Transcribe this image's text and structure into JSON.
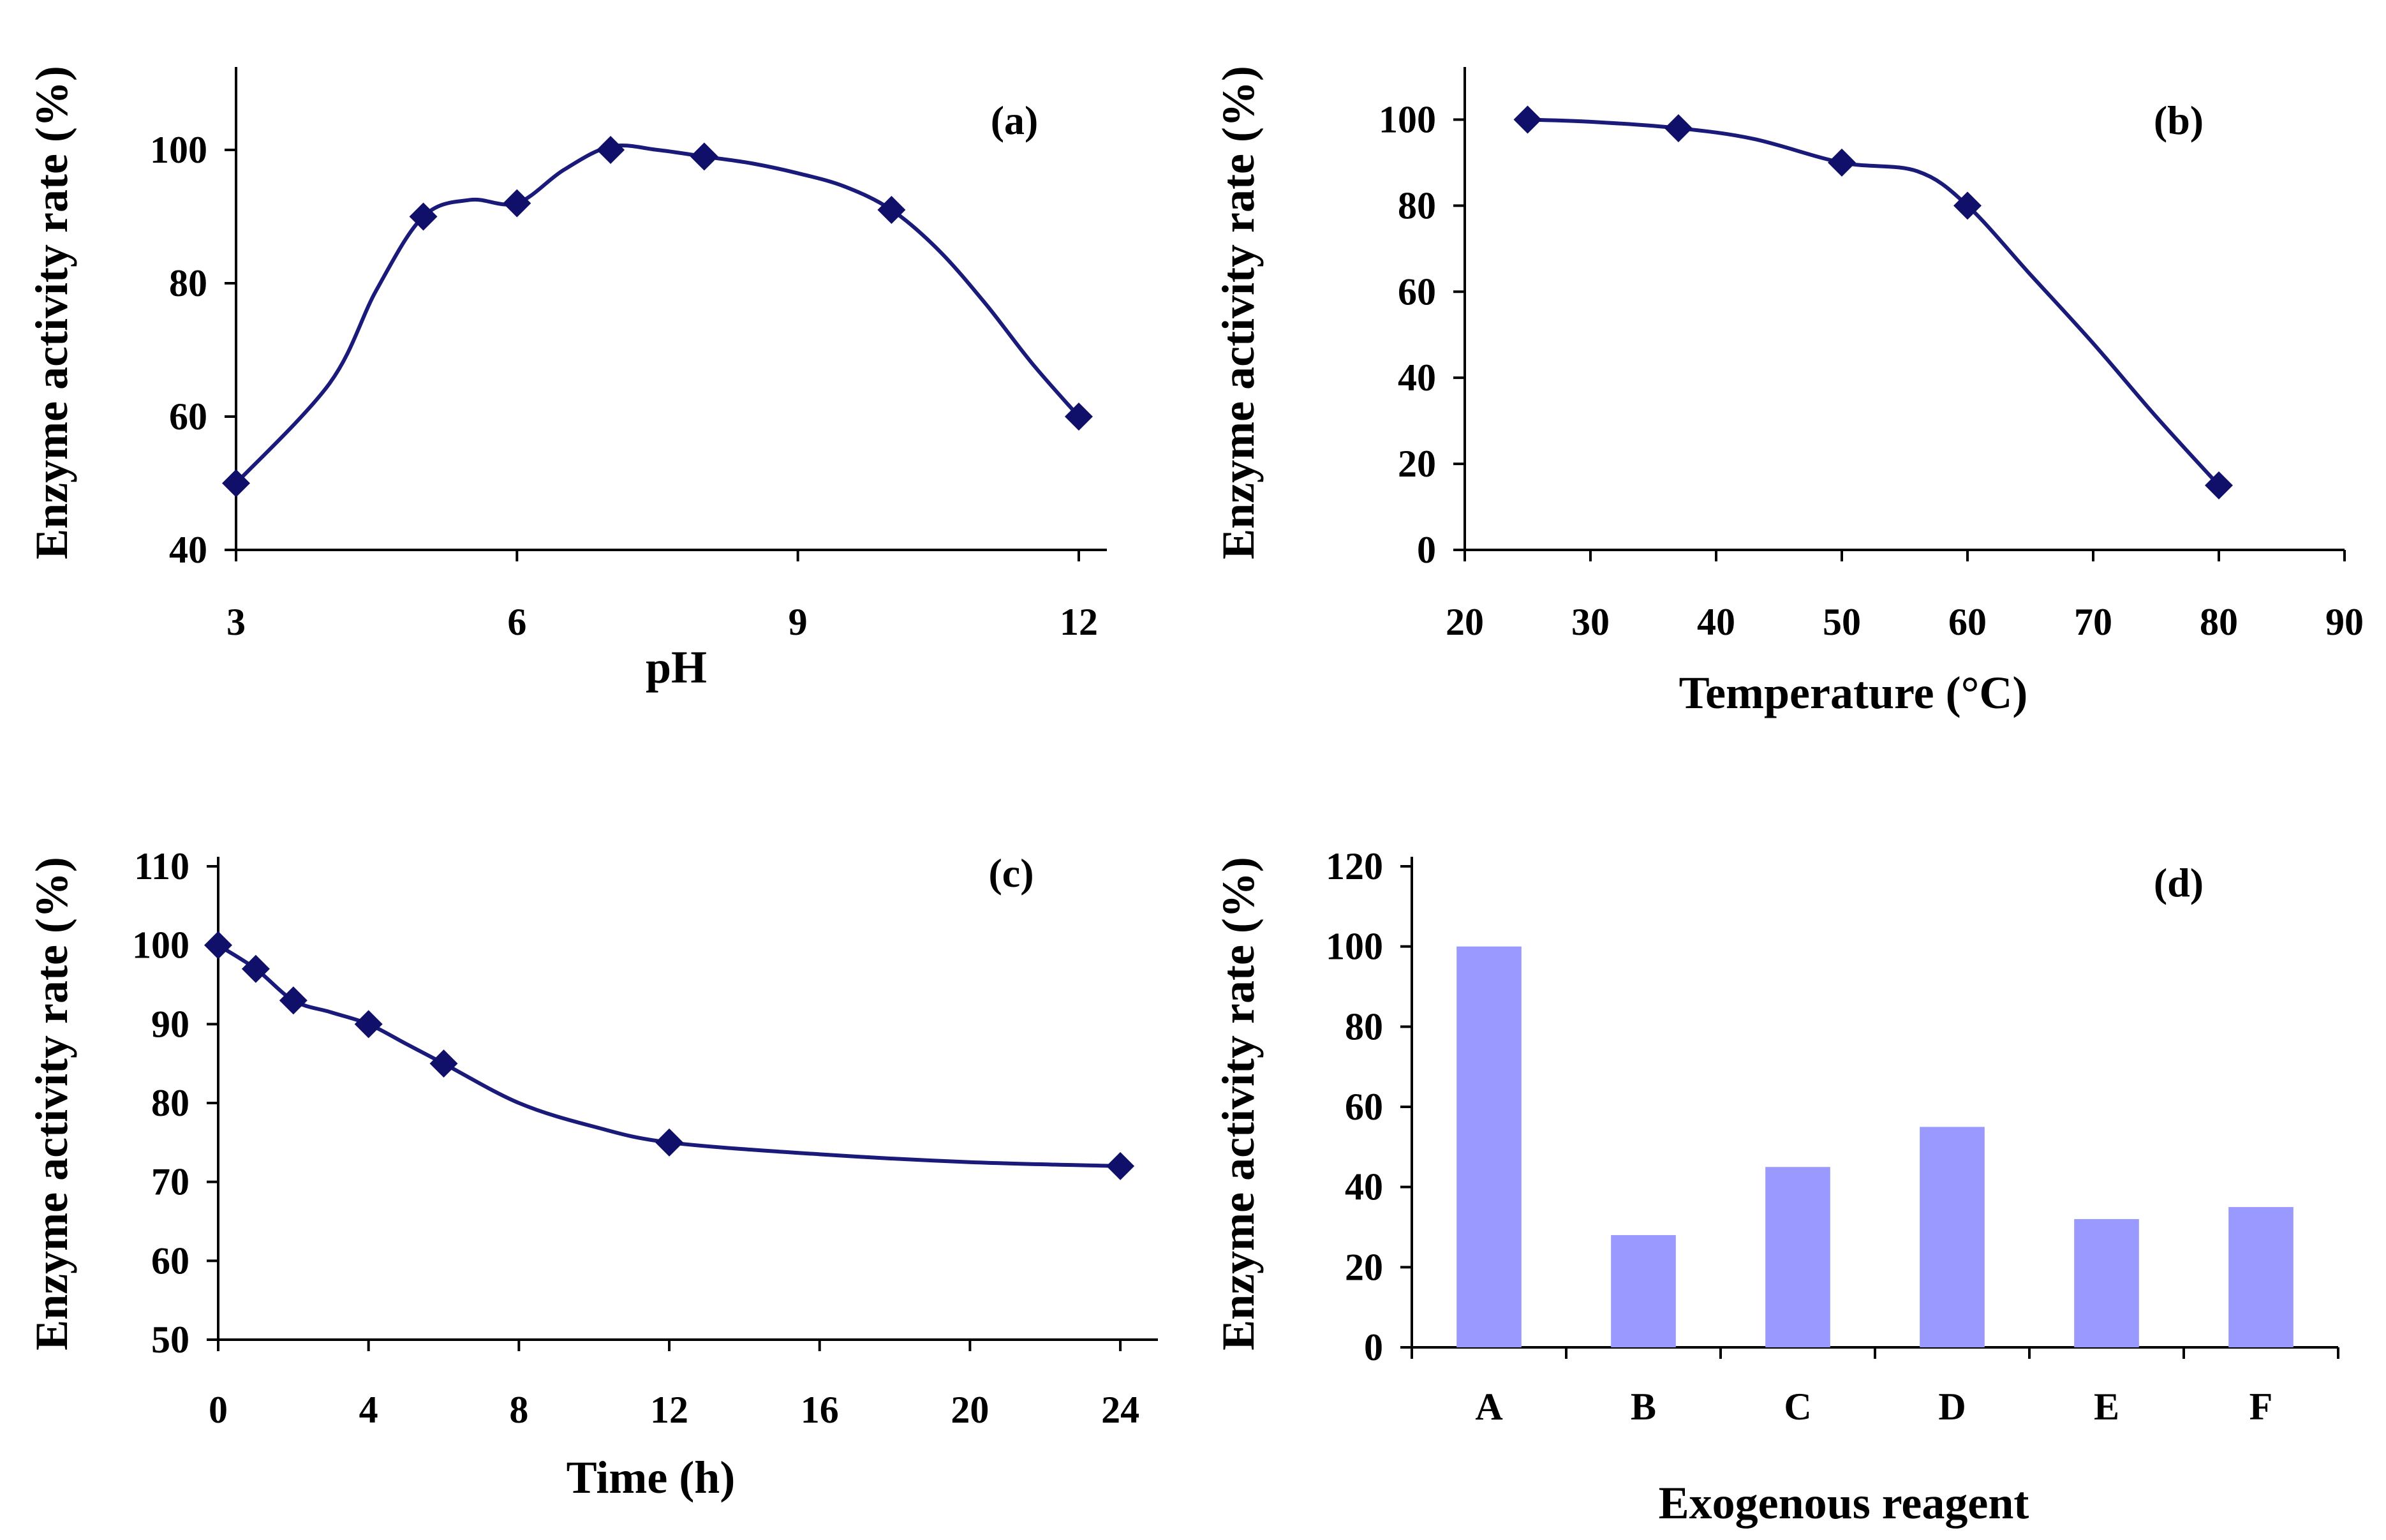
{
  "colors": {
    "line": "#1a1a7a",
    "marker": "#10106b",
    "bar": "#9999ff",
    "axis": "#000000"
  },
  "chart_data": [
    {
      "panel": "(a)",
      "type": "line",
      "xlabel": "pH",
      "ylabel": "Enzyme activity rate (%)",
      "xlim": [
        3,
        12.3
      ],
      "ylim": [
        40,
        111
      ],
      "xticks": [
        3,
        6,
        9,
        12
      ],
      "xtick_labels": [
        "3",
        "6",
        "9",
        "12"
      ],
      "yticks": [
        40,
        60,
        80,
        100
      ],
      "ytick_labels": [
        "40",
        "60",
        "80",
        "100"
      ],
      "markers": {
        "x": [
          3,
          5,
          6,
          7,
          8,
          10,
          12
        ],
        "y": [
          50,
          90,
          92,
          100,
          99,
          91,
          60
        ]
      },
      "curve": {
        "x": [
          3,
          4,
          4.5,
          5,
          5.5,
          6,
          6.5,
          7,
          7.5,
          8,
          8.5,
          9,
          9.5,
          10,
          10.5,
          11,
          11.5,
          12
        ],
        "y": [
          50,
          65,
          79,
          90,
          92.5,
          92,
          97,
          100.5,
          100,
          99,
          98,
          96.5,
          94.5,
          91,
          85,
          77,
          68,
          60
        ]
      }
    },
    {
      "panel": "(b)",
      "type": "line",
      "xlabel": "Temperature (°C)",
      "ylabel": "Enzyme activity rate (%)",
      "xlim": [
        20,
        90
      ],
      "ylim": [
        0,
        110
      ],
      "xticks": [
        20,
        30,
        40,
        50,
        60,
        70,
        80,
        90
      ],
      "xtick_labels": [
        "20",
        "30",
        "40",
        "50",
        "60",
        "70",
        "80",
        "90"
      ],
      "yticks": [
        0,
        20,
        40,
        60,
        80,
        100
      ],
      "ytick_labels": [
        "0",
        "20",
        "40",
        "60",
        "80",
        "100"
      ],
      "markers": {
        "x": [
          25,
          37,
          50,
          60,
          80
        ],
        "y": [
          100,
          98,
          90,
          80,
          15
        ]
      },
      "curve": {
        "x": [
          25,
          30,
          37,
          43,
          50,
          56,
          60,
          65,
          70,
          75,
          80
        ],
        "y": [
          100,
          99.5,
          98,
          95.5,
          90,
          88,
          80,
          64,
          48,
          31,
          15
        ]
      }
    },
    {
      "panel": "(c)",
      "type": "line",
      "xlabel": "Time (h)",
      "ylabel": "Enzyme activity rate (%)",
      "xlim": [
        0,
        25
      ],
      "ylim": [
        50,
        110
      ],
      "xticks": [
        0,
        4,
        8,
        12,
        16,
        20,
        24
      ],
      "xtick_labels": [
        "0",
        "4",
        "8",
        "12",
        "16",
        "20",
        "24"
      ],
      "yticks": [
        50,
        60,
        70,
        80,
        90,
        100,
        110
      ],
      "ytick_labels": [
        "50",
        "60",
        "70",
        "80",
        "90",
        "100",
        "110"
      ],
      "markers": {
        "x": [
          0,
          1,
          2,
          4,
          6,
          12,
          24
        ],
        "y": [
          100,
          97,
          93,
          90,
          85,
          75,
          72
        ]
      },
      "curve": {
        "x": [
          0,
          1,
          2,
          3,
          4,
          5,
          6,
          8,
          10,
          12,
          16,
          20,
          24
        ],
        "y": [
          100,
          97,
          93,
          91.5,
          90,
          87.5,
          85,
          80,
          77,
          75,
          73.5,
          72.5,
          72
        ]
      }
    },
    {
      "panel": "(d)",
      "type": "bar",
      "xlabel": "Exogenous reagent",
      "ylabel": "Enzyme activity rate (%)",
      "ylim": [
        0,
        120
      ],
      "yticks": [
        0,
        20,
        40,
        60,
        80,
        100,
        120
      ],
      "ytick_labels": [
        "0",
        "20",
        "40",
        "60",
        "80",
        "100",
        "120"
      ],
      "categories": [
        "A",
        "B",
        "C",
        "D",
        "E",
        "F"
      ],
      "values": [
        100,
        28,
        45,
        55,
        32,
        35
      ]
    }
  ]
}
